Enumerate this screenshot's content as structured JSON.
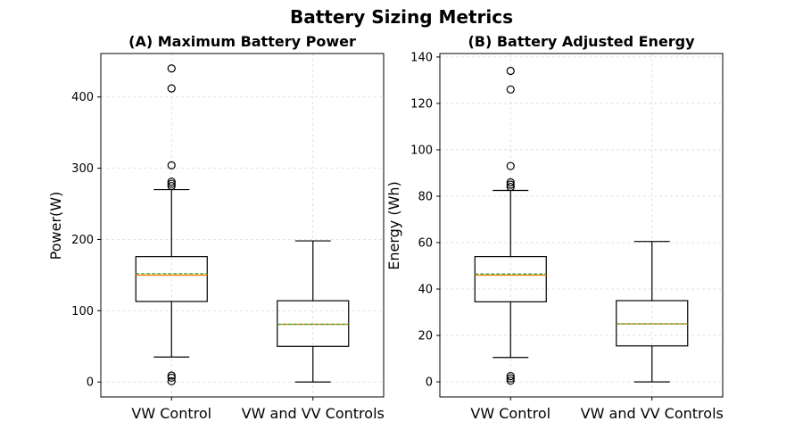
{
  "figure": {
    "title": "Battery Sizing Metrics"
  },
  "chart_data": [
    {
      "type": "box",
      "title": "(A) Maximum Battery Power",
      "ylabel": "Power(W)",
      "xlabel": "",
      "categories": [
        "VW Control",
        "VW and VV Controls"
      ],
      "ylim": [
        -21,
        461
      ],
      "yticks": [
        0,
        100,
        200,
        300,
        400
      ],
      "grid": true,
      "boxes": [
        {
          "name": "VW Control",
          "whisker_low": 35,
          "q1": 113,
          "median": 150,
          "mean": 152,
          "q3": 176,
          "whisker_high": 270,
          "outliers": [
            440,
            412,
            304,
            281,
            278,
            275,
            9,
            6,
            1
          ]
        },
        {
          "name": "VW and VV Controls",
          "whisker_low": 0,
          "q1": 50,
          "median": 81,
          "mean": 81,
          "q3": 114,
          "whisker_high": 198,
          "outliers": []
        }
      ]
    },
    {
      "type": "box",
      "title": "(B) Battery Adjusted Energy",
      "ylabel": "Energy (Wh)",
      "xlabel": "",
      "categories": [
        "VW Control",
        "VW and VV Controls"
      ],
      "ylim": [
        -6.5,
        141.5
      ],
      "yticks": [
        0,
        20,
        40,
        60,
        80,
        100,
        120,
        140
      ],
      "grid": true,
      "boxes": [
        {
          "name": "VW Control",
          "whisker_low": 10.5,
          "q1": 34.5,
          "median": 46,
          "mean": 46.5,
          "q3": 54,
          "whisker_high": 82.5,
          "outliers": [
            134,
            126,
            93,
            86,
            85,
            84,
            2.5,
            1.5,
            0.5
          ]
        },
        {
          "name": "VW and VV Controls",
          "whisker_low": 0,
          "q1": 15.5,
          "median": 25,
          "mean": 25,
          "q3": 35,
          "whisker_high": 60.5,
          "outliers": []
        }
      ]
    }
  ],
  "styles": {
    "median_color": "#ff7f0e",
    "mean_color": "#2ca02c",
    "box_color": "#000000",
    "grid_color": "#d9d9d9"
  }
}
